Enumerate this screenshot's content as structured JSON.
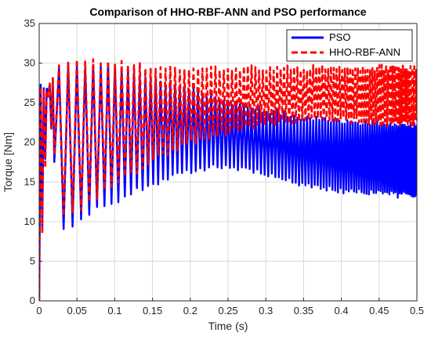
{
  "chart_data": {
    "type": "line",
    "title": "Comparison of HHO-RBF-ANN and PSO performance",
    "xlabel": "Time (s)",
    "ylabel": "Torque [Nm]",
    "xlim": [
      0,
      0.5
    ],
    "ylim": [
      0,
      35
    ],
    "xticks": [
      0,
      0.05,
      0.1,
      0.15,
      0.2,
      0.25,
      0.3,
      0.35,
      0.4,
      0.45,
      0.5
    ],
    "xtick_labels": [
      "0",
      "0.05",
      "0.1",
      "0.15",
      "0.2",
      "0.25",
      "0.3",
      "0.35",
      "0.4",
      "0.45",
      "0.5"
    ],
    "yticks": [
      0,
      5,
      10,
      15,
      20,
      25,
      30,
      35
    ],
    "ytick_labels": [
      "0",
      "5",
      "10",
      "15",
      "20",
      "25",
      "30",
      "35"
    ],
    "grid": true,
    "legend_position": "top-right",
    "series": [
      {
        "name": "PSO",
        "color": "#0000ff",
        "style": "solid",
        "envelope": {
          "t": [
            0,
            0.012,
            0.028,
            0.05,
            0.065,
            0.08,
            0.1,
            0.15,
            0.2,
            0.25,
            0.3,
            0.35,
            0.4,
            0.45,
            0.5
          ],
          "min": [
            0,
            26,
            8.3,
            9.7,
            10.6,
            11.7,
            12.1,
            14.4,
            16.0,
            16.8,
            15.5,
            14.2,
            13.5,
            13.2,
            12.8
          ],
          "max": [
            27.5,
            27.3,
            30.5,
            30.2,
            30.0,
            30.0,
            30.0,
            28.5,
            27.0,
            25.5,
            24.5,
            23.5,
            23.0,
            22.8,
            22.5
          ]
        }
      },
      {
        "name": "HHO-RBF-ANN",
        "color": "#ff0000",
        "style": "dashed",
        "envelope": {
          "t": [
            0,
            0.012,
            0.028,
            0.05,
            0.065,
            0.08,
            0.1,
            0.15,
            0.2,
            0.25,
            0.3,
            0.35,
            0.4,
            0.45,
            0.5
          ],
          "min": [
            0,
            25,
            10.5,
            10.6,
            12,
            13,
            14,
            17.5,
            19.5,
            21,
            22,
            22.5,
            22.5,
            22,
            22
          ],
          "max": [
            27,
            27,
            30.6,
            30.5,
            30.5,
            30.5,
            30.5,
            30.0,
            29.8,
            29.8,
            29.8,
            29.8,
            29.8,
            29.8,
            29.8
          ]
        }
      }
    ]
  }
}
